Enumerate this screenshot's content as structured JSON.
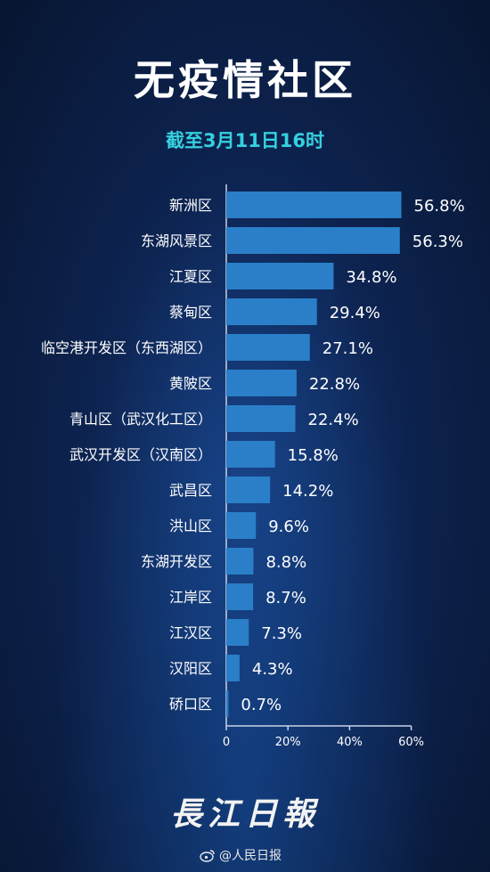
{
  "header": {
    "title": "无疫情社区",
    "subtitle": "截至3月11日16时"
  },
  "chart_data": {
    "type": "bar",
    "orientation": "horizontal",
    "categories": [
      "新洲区",
      "东湖风景区",
      "江夏区",
      "蔡甸区",
      "临空港开发区（东西湖区）",
      "黄陂区",
      "青山区（武汉化工区）",
      "武汉开发区（汉南区）",
      "武昌区",
      "洪山区",
      "东湖开发区",
      "江岸区",
      "江汉区",
      "汉阳区",
      "硚口区"
    ],
    "values": [
      56.8,
      56.3,
      34.8,
      29.4,
      27.1,
      22.8,
      22.4,
      15.8,
      14.2,
      9.6,
      8.8,
      8.7,
      7.3,
      4.3,
      0.7
    ],
    "value_labels": [
      "56.8%",
      "56.3%",
      "34.8%",
      "29.4%",
      "27.1%",
      "22.8%",
      "22.4%",
      "15.8%",
      "14.2%",
      "9.6%",
      "8.8%",
      "8.7%",
      "7.3%",
      "4.3%",
      "0.7%"
    ],
    "xticks": [
      "0",
      "20%",
      "40%",
      "60%"
    ],
    "xlim": [
      0,
      60
    ],
    "bar_color": "#2a7fc8",
    "grid": false
  },
  "footer": {
    "brand": "長江日報",
    "watermark": "@人民日报"
  }
}
